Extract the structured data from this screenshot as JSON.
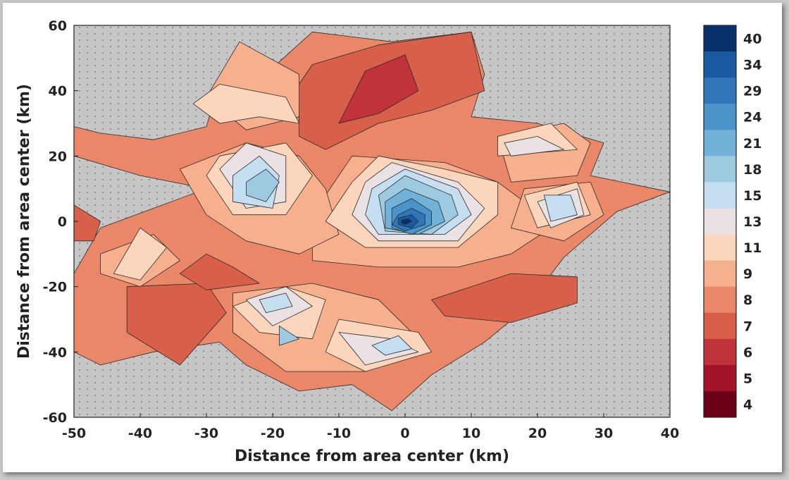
{
  "chart_data": {
    "type": "contour",
    "xlabel": "Distance from area center (km)",
    "ylabel": "Distance from area center (km)",
    "xlim": [
      -50,
      40
    ],
    "ylim": [
      -60,
      60
    ],
    "x_ticks": [
      "-50",
      "-40",
      "-30",
      "-20",
      "-10",
      "0",
      "10",
      "20",
      "30",
      "40"
    ],
    "y_ticks": [
      "60",
      "40",
      "20",
      "0",
      "-20",
      "-40",
      "-60"
    ],
    "colorbar": {
      "levels": [
        "40",
        "34",
        "29",
        "24",
        "21",
        "18",
        "15",
        "13",
        "11",
        "9",
        "8",
        "7",
        "6",
        "5",
        "4"
      ],
      "colors": [
        "#08306b",
        "#1a5aa3",
        "#2f77b9",
        "#4a94c9",
        "#72b2d8",
        "#9ecae1",
        "#c6dff0",
        "#e9e1e3",
        "#fbd6bd",
        "#f6b08d",
        "#ea8768",
        "#d85f4a",
        "#c0333a",
        "#a3142b",
        "#6b0019"
      ]
    },
    "background_color": "#c6c6c6",
    "regions": [
      {
        "level": "8",
        "points": [
          [
            -50,
            29
          ],
          [
            -46,
            27
          ],
          [
            -38,
            25
          ],
          [
            -30,
            29
          ],
          [
            -28,
            43
          ],
          [
            -20,
            47
          ],
          [
            -14,
            58
          ],
          [
            -2,
            55
          ],
          [
            10,
            58
          ],
          [
            12,
            45
          ],
          [
            10,
            32
          ],
          [
            20,
            30
          ],
          [
            30,
            24
          ],
          [
            28,
            14
          ],
          [
            40,
            9
          ],
          [
            32,
            3
          ],
          [
            24,
            -11
          ],
          [
            18,
            -27
          ],
          [
            12,
            -37
          ],
          [
            4,
            -47
          ],
          [
            -2,
            -58
          ],
          [
            -8,
            -50
          ],
          [
            -16,
            -52
          ],
          [
            -24,
            -44
          ],
          [
            -28,
            -37
          ],
          [
            -38,
            -40
          ],
          [
            -46,
            -44
          ],
          [
            -50,
            -40
          ],
          [
            -50,
            -16
          ],
          [
            -46,
            -2
          ],
          [
            -38,
            4
          ],
          [
            -30,
            10
          ],
          [
            -40,
            14
          ],
          [
            -50,
            20
          ]
        ]
      },
      {
        "level": "7",
        "points": [
          [
            -14,
            48
          ],
          [
            -4,
            54
          ],
          [
            10,
            58
          ],
          [
            12,
            40
          ],
          [
            4,
            34
          ],
          [
            -4,
            30
          ],
          [
            -12,
            22
          ],
          [
            -16,
            26
          ],
          [
            -16,
            42
          ]
        ]
      },
      {
        "level": "6",
        "points": [
          [
            -10,
            30
          ],
          [
            -6,
            46
          ],
          [
            0,
            51
          ],
          [
            2,
            40
          ],
          [
            -4,
            33
          ]
        ]
      },
      {
        "level": "7",
        "points": [
          [
            4,
            -24
          ],
          [
            10,
            -20
          ],
          [
            16,
            -16
          ],
          [
            26,
            -17
          ],
          [
            26,
            -25
          ],
          [
            16,
            -31
          ],
          [
            6,
            -29
          ]
        ]
      },
      {
        "level": "7",
        "points": [
          [
            -42,
            -20
          ],
          [
            -30,
            -19
          ],
          [
            -27,
            -28
          ],
          [
            -34,
            -44
          ],
          [
            -42,
            -34
          ]
        ]
      },
      {
        "level": "7",
        "points": [
          [
            -30,
            -10
          ],
          [
            -26,
            -14
          ],
          [
            -22,
            -19
          ],
          [
            -30,
            -21
          ],
          [
            -34,
            -16
          ]
        ]
      },
      {
        "level": "7",
        "points": [
          [
            -50,
            5
          ],
          [
            -46,
            0
          ],
          [
            -47,
            -6
          ],
          [
            -50,
            -6
          ]
        ]
      },
      {
        "level": "9",
        "points": [
          [
            -12,
            8
          ],
          [
            -8,
            20
          ],
          [
            6,
            18
          ],
          [
            14,
            12
          ],
          [
            18,
            6
          ],
          [
            22,
            -2
          ],
          [
            16,
            -10
          ],
          [
            8,
            -14
          ],
          [
            -4,
            -14
          ],
          [
            -14,
            -12
          ],
          [
            -14,
            -2
          ]
        ]
      },
      {
        "level": "9",
        "points": [
          [
            -30,
            38
          ],
          [
            -25,
            55
          ],
          [
            -16,
            45
          ],
          [
            -16,
            32
          ],
          [
            -24,
            28
          ]
        ]
      },
      {
        "level": "9",
        "points": [
          [
            -34,
            16
          ],
          [
            -30,
            2
          ],
          [
            -24,
            -6
          ],
          [
            -16,
            -10
          ],
          [
            -10,
            -4
          ],
          [
            -12,
            10
          ],
          [
            -16,
            20
          ],
          [
            -24,
            24
          ]
        ]
      },
      {
        "level": "9",
        "points": [
          [
            -26,
            -22
          ],
          [
            -14,
            -19
          ],
          [
            -4,
            -24
          ],
          [
            2,
            -36
          ],
          [
            -6,
            -46
          ],
          [
            -18,
            -46
          ],
          [
            -26,
            -34
          ]
        ]
      },
      {
        "level": "9",
        "points": [
          [
            -46,
            -10
          ],
          [
            -38,
            -4
          ],
          [
            -34,
            -12
          ],
          [
            -40,
            -20
          ],
          [
            -46,
            -16
          ]
        ]
      },
      {
        "level": "9",
        "points": [
          [
            14,
            26
          ],
          [
            24,
            30
          ],
          [
            28,
            24
          ],
          [
            26,
            14
          ],
          [
            16,
            12
          ]
        ]
      },
      {
        "level": "9",
        "points": [
          [
            18,
            10
          ],
          [
            28,
            12
          ],
          [
            30,
            2
          ],
          [
            24,
            -6
          ],
          [
            16,
            -2
          ]
        ]
      },
      {
        "level": "11",
        "points": [
          [
            -32,
            36
          ],
          [
            -28,
            42
          ],
          [
            -18,
            38
          ],
          [
            -16,
            30
          ],
          [
            -22,
            32
          ],
          [
            -28,
            30
          ]
        ]
      },
      {
        "level": "11",
        "points": [
          [
            -8,
            12
          ],
          [
            -4,
            20
          ],
          [
            6,
            16
          ],
          [
            14,
            12
          ],
          [
            14,
            2
          ],
          [
            8,
            -8
          ],
          [
            -6,
            -8
          ],
          [
            -12,
            0
          ]
        ]
      },
      {
        "level": "11",
        "points": [
          [
            -30,
            14
          ],
          [
            -28,
            20
          ],
          [
            -18,
            24
          ],
          [
            -14,
            14
          ],
          [
            -18,
            2
          ],
          [
            -26,
            2
          ]
        ]
      },
      {
        "level": "11",
        "points": [
          [
            -44,
            -16
          ],
          [
            -40,
            -2
          ],
          [
            -36,
            -8
          ],
          [
            -40,
            -18
          ]
        ]
      },
      {
        "level": "11",
        "points": [
          [
            14,
            26
          ],
          [
            22,
            30
          ],
          [
            26,
            22
          ],
          [
            14,
            20
          ]
        ]
      },
      {
        "level": "11",
        "points": [
          [
            18,
            8
          ],
          [
            26,
            12
          ],
          [
            28,
            2
          ],
          [
            20,
            -2
          ]
        ]
      },
      {
        "level": "11",
        "points": [
          [
            -26,
            -26
          ],
          [
            -18,
            -20
          ],
          [
            -12,
            -24
          ],
          [
            -14,
            -36
          ],
          [
            -22,
            -34
          ]
        ]
      },
      {
        "level": "11",
        "points": [
          [
            -10,
            -30
          ],
          [
            2,
            -34
          ],
          [
            4,
            -40
          ],
          [
            -6,
            -46
          ],
          [
            -12,
            -40
          ]
        ]
      },
      {
        "level": "13",
        "points": [
          [
            -28,
            16
          ],
          [
            -24,
            24
          ],
          [
            -18,
            20
          ],
          [
            -18,
            6
          ],
          [
            -24,
            4
          ]
        ]
      },
      {
        "level": "13",
        "points": [
          [
            -6,
            12
          ],
          [
            -2,
            18
          ],
          [
            8,
            12
          ],
          [
            12,
            4
          ],
          [
            8,
            -6
          ],
          [
            -4,
            -6
          ],
          [
            -8,
            2
          ]
        ]
      },
      {
        "level": "13",
        "points": [
          [
            15,
            24
          ],
          [
            20,
            26
          ],
          [
            24,
            22
          ],
          [
            16,
            20
          ]
        ]
      },
      {
        "level": "13",
        "points": [
          [
            20,
            6
          ],
          [
            26,
            10
          ],
          [
            27,
            2
          ],
          [
            22,
            -2
          ]
        ]
      },
      {
        "level": "13",
        "points": [
          [
            -24,
            -24
          ],
          [
            -18,
            -20
          ],
          [
            -14,
            -26
          ],
          [
            -20,
            -32
          ]
        ]
      },
      {
        "level": "13",
        "points": [
          [
            -10,
            -34
          ],
          [
            -2,
            -36
          ],
          [
            2,
            -40
          ],
          [
            -6,
            -44
          ]
        ]
      },
      {
        "level": "15",
        "points": [
          [
            -26,
            14
          ],
          [
            -22,
            20
          ],
          [
            -19,
            14
          ],
          [
            -20,
            4
          ],
          [
            -26,
            6
          ]
        ]
      },
      {
        "level": "15",
        "points": [
          [
            -5,
            10
          ],
          [
            0,
            16
          ],
          [
            8,
            10
          ],
          [
            10,
            2
          ],
          [
            6,
            -4
          ],
          [
            -4,
            -4
          ],
          [
            -6,
            2
          ]
        ]
      },
      {
        "level": "15",
        "points": [
          [
            21,
            8
          ],
          [
            25,
            8
          ],
          [
            26,
            2
          ],
          [
            22,
            0
          ]
        ]
      },
      {
        "level": "15",
        "points": [
          [
            -22,
            -24
          ],
          [
            -18,
            -22
          ],
          [
            -17,
            -26
          ],
          [
            -21,
            -28
          ]
        ]
      },
      {
        "level": "15",
        "points": [
          [
            -5,
            -38
          ],
          [
            -1,
            -35
          ],
          [
            1,
            -39
          ],
          [
            -3,
            -41
          ]
        ]
      },
      {
        "level": "18",
        "points": [
          [
            -24,
            12
          ],
          [
            -21,
            16
          ],
          [
            -19,
            12
          ],
          [
            -21,
            6
          ],
          [
            -24,
            8
          ]
        ]
      },
      {
        "level": "18",
        "points": [
          [
            -4,
            8
          ],
          [
            0,
            14
          ],
          [
            7,
            8
          ],
          [
            8,
            2
          ],
          [
            4,
            -4
          ],
          [
            -3,
            -3
          ]
        ]
      },
      {
        "level": "18",
        "points": [
          [
            -19,
            -32
          ],
          [
            -16,
            -36
          ],
          [
            -19,
            -38
          ]
        ]
      },
      {
        "level": "21",
        "points": [
          [
            -3,
            6
          ],
          [
            0,
            10
          ],
          [
            5,
            6
          ],
          [
            6,
            0
          ],
          [
            2,
            -4
          ],
          [
            -3,
            -2
          ]
        ]
      },
      {
        "level": "24",
        "points": [
          [
            -2,
            4
          ],
          [
            1,
            7
          ],
          [
            4,
            3
          ],
          [
            4,
            -1
          ],
          [
            1,
            -4
          ],
          [
            -2,
            -2
          ]
        ]
      },
      {
        "level": "29",
        "points": [
          [
            -1,
            2
          ],
          [
            1,
            4
          ],
          [
            3,
            2
          ],
          [
            3,
            -1
          ],
          [
            0,
            -3
          ],
          [
            -2,
            -1
          ]
        ]
      },
      {
        "level": "34",
        "points": [
          [
            -1,
            1
          ],
          [
            1,
            2
          ],
          [
            2,
            0
          ],
          [
            1,
            -2
          ],
          [
            -1,
            -1
          ]
        ]
      },
      {
        "level": "40",
        "points": [
          [
            -0.5,
            0.3
          ],
          [
            0.5,
            0.8
          ],
          [
            1,
            0
          ],
          [
            0,
            -1
          ],
          [
            -0.6,
            -0.4
          ]
        ]
      }
    ]
  }
}
